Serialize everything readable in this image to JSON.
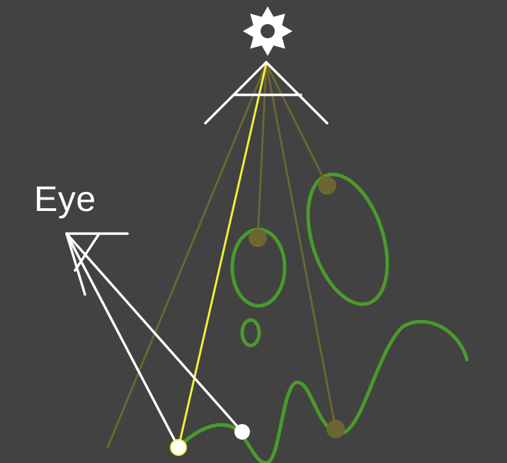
{
  "eye": {
    "label": "Eye"
  },
  "colors": {
    "background": "#424242",
    "camera": "#ffffff",
    "primary_ray": "#ffffff",
    "light": "#ffffff",
    "shadow_ray_lit": "#f2ee3c",
    "shadow_ray_blocked": "#6b6632",
    "surface": "#4a9a2c",
    "occluded_point": "#6b6632",
    "lit_point": "#ffffff"
  },
  "icons": {
    "light": "sun-icon",
    "eye": "camera-frustum-icon"
  }
}
